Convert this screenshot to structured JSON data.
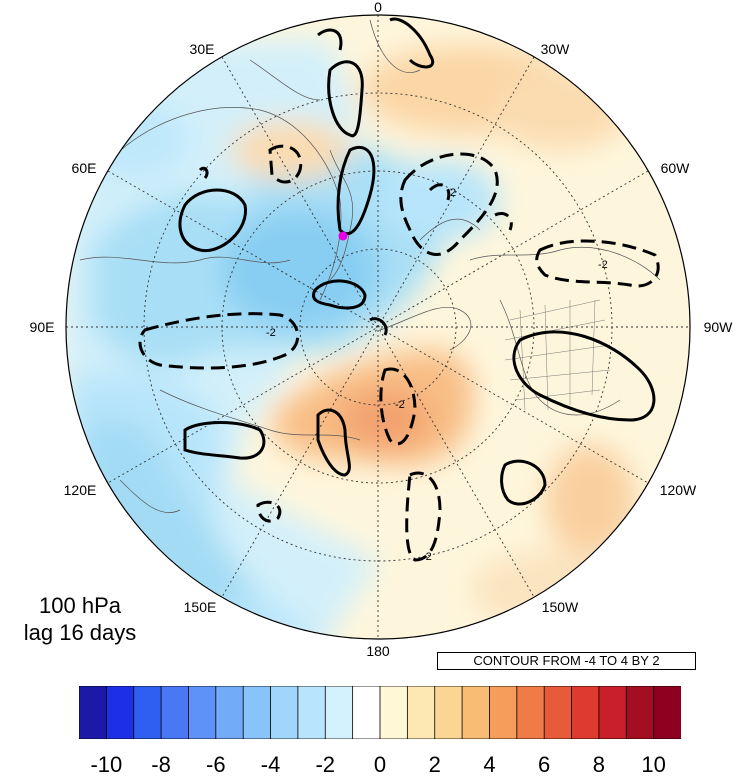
{
  "map": {
    "projection": "north-polar-stereographic",
    "longitude_labels": [
      "0",
      "30W",
      "60W",
      "90W",
      "120W",
      "150W",
      "180",
      "150E",
      "120E",
      "90E",
      "60E",
      "30E"
    ],
    "marker_color": "#e600e6"
  },
  "caption": {
    "line1": "100 hPa",
    "line2": "lag 16 days"
  },
  "contour_info": "CONTOUR FROM -4 TO 4 BY 2",
  "contour_labels": [
    "-2",
    "2",
    "-2",
    "-2",
    "-2"
  ],
  "colorbar": {
    "colors": [
      "#1a1aa6",
      "#1e30e6",
      "#2e5ff0",
      "#4a78f5",
      "#5e92f8",
      "#72abfa",
      "#88c3fb",
      "#a0d5fc",
      "#b8e5fd",
      "#d4f2fe",
      "#ffffff",
      "#fff7d6",
      "#fde8b4",
      "#fbd594",
      "#f9bc75",
      "#f59d5b",
      "#ef7b48",
      "#e75a3a",
      "#de3a30",
      "#c91f2a",
      "#a30f22",
      "#8e0020"
    ],
    "tick_labels": [
      "-10",
      "-8",
      "-6",
      "-4",
      "-2",
      "0",
      "2",
      "4",
      "6",
      "8",
      "10"
    ]
  }
}
